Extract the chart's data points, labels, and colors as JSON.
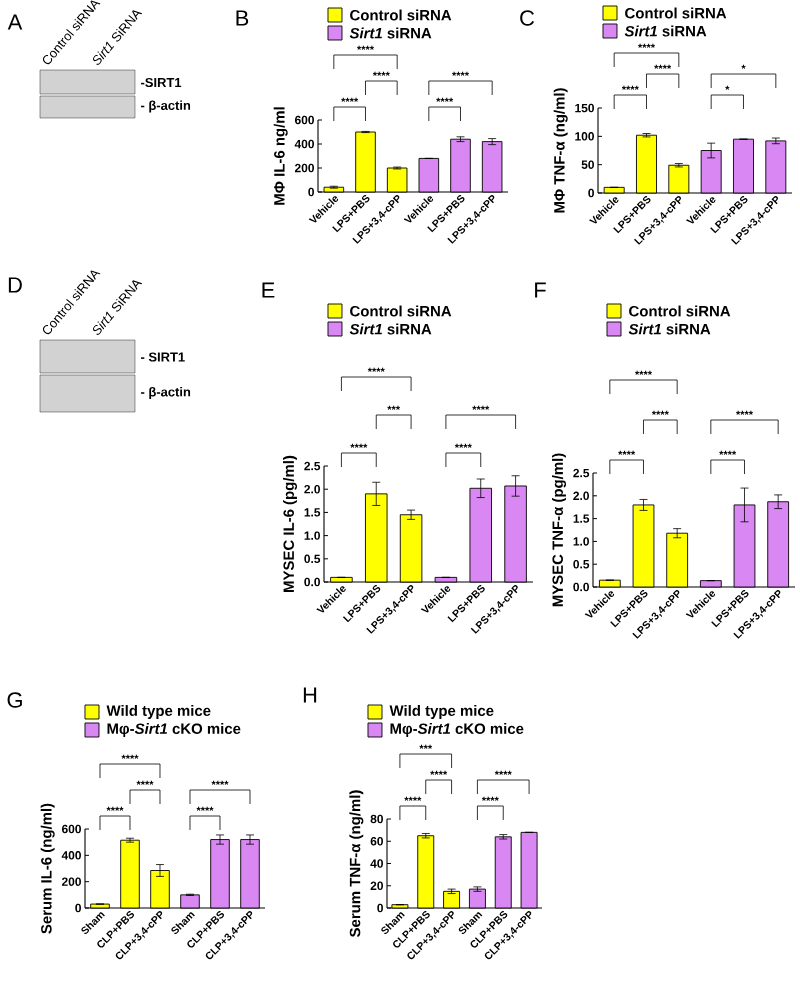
{
  "chart_data": [
    {
      "type": "other",
      "title": "A",
      "annotations": [
        "Control siRNA",
        "*Sirt1* SiRNA",
        "-SIRT1",
        "- β-actin"
      ]
    },
    {
      "type": "bar",
      "title": "B",
      "ylabel": "MΦ IL-6 ng/ml",
      "categories": [
        "Vehicle",
        "LPS+PBS",
        "LPS+3,4-cPP",
        "Vehicle",
        "LPS+PBS",
        "LPS+3,4-cPP"
      ],
      "series": [
        {
          "name": "Control siRNA",
          "color": "#ffff00",
          "values": [
            40,
            500,
            200,
            null,
            null,
            null
          ],
          "errors": [
            8,
            5,
            8,
            null,
            null,
            null
          ]
        },
        {
          "name": "*Sirt1* siRNA",
          "color": "#d987f2",
          "values": [
            null,
            null,
            null,
            280,
            440,
            420
          ],
          "errors": [
            null,
            null,
            null,
            null,
            20,
            25
          ]
        }
      ],
      "ylim": [
        0,
        600
      ],
      "yticks": [
        0,
        200,
        400,
        600
      ],
      "legend": "top",
      "annotations": [
        "****",
        "****",
        "****",
        "****",
        "****"
      ]
    },
    {
      "type": "bar",
      "title": "C",
      "ylabel": "MΦ TNF-α (ng/ml)",
      "categories": [
        "Vehicle",
        "LPS+PBS",
        "LPS+3,4-cPP",
        "Vehicle",
        "LPS+PBS",
        "LPS+3,4-cPP"
      ],
      "series": [
        {
          "name": "Control siRNA",
          "color": "#ffff00",
          "values": [
            10,
            102,
            49,
            null,
            null,
            null
          ],
          "errors": [
            null,
            3,
            3,
            null,
            null,
            null
          ]
        },
        {
          "name": "*Sirt1* siRNA",
          "color": "#d987f2",
          "values": [
            null,
            null,
            null,
            75,
            95,
            92
          ],
          "errors": [
            null,
            null,
            null,
            13,
            null,
            5
          ]
        }
      ],
      "ylim": [
        0,
        150
      ],
      "yticks": [
        0,
        50,
        100,
        150
      ],
      "legend": "top",
      "annotations": [
        "****",
        "****",
        "****",
        "*",
        "*"
      ]
    },
    {
      "type": "other",
      "title": "D",
      "annotations": [
        "Control siRNA",
        "*Sirt1* SiRNA",
        "- SIRT1",
        "- β-actin"
      ]
    },
    {
      "type": "bar",
      "title": "E",
      "ylabel": "MYSEC IL-6 (pg/ml)",
      "categories": [
        "Vehicle",
        "LPS+PBS",
        "LPS+3,4-cPP",
        "Vehicle",
        "LPS+PBS",
        "LPS+3,4-cPP"
      ],
      "series": [
        {
          "name": "Control siRNA",
          "color": "#ffff00",
          "values": [
            0.1,
            1.9,
            1.45,
            null,
            null,
            null
          ],
          "errors": [
            null,
            0.25,
            0.1,
            null,
            null,
            null
          ]
        },
        {
          "name": "*Sirt1* siRNA",
          "color": "#d987f2",
          "values": [
            null,
            null,
            null,
            0.1,
            2.02,
            2.07
          ],
          "errors": [
            null,
            null,
            null,
            null,
            0.2,
            0.22
          ]
        }
      ],
      "ylim": [
        0,
        2.5
      ],
      "yticks": [
        {
          "value": 0,
          "label": "0.0"
        },
        {
          "value": 0.5,
          "label": "0.5"
        },
        {
          "value": 1,
          "label": "1.0"
        },
        {
          "value": 1.5,
          "label": "1.5"
        },
        {
          "value": 2,
          "label": "2.0"
        },
        {
          "value": 2.5,
          "label": "2.5"
        }
      ],
      "legend": "top",
      "annotations": [
        "****",
        "***",
        "****",
        "****",
        "****"
      ]
    },
    {
      "type": "bar",
      "title": "F",
      "ylabel": "MYSEC TNF-α (pg/ml)",
      "categories": [
        "Vehicle",
        "LPS+PBS",
        "LPS+3,4-cPP",
        "Vehicle",
        "LPS+PBS",
        "LPS+3,4-cPP"
      ],
      "series": [
        {
          "name": "Control siRNA",
          "color": "#ffff00",
          "values": [
            0.15,
            1.8,
            1.18,
            null,
            null,
            null
          ],
          "errors": [
            null,
            0.12,
            0.1,
            null,
            null,
            null
          ]
        },
        {
          "name": "*Sirt1* siRNA",
          "color": "#d987f2",
          "values": [
            null,
            null,
            null,
            0.14,
            1.8,
            1.87
          ],
          "errors": [
            null,
            null,
            null,
            null,
            0.37,
            0.15
          ]
        }
      ],
      "ylim": [
        0,
        2.5
      ],
      "yticks": [
        {
          "value": 0,
          "label": "0.0"
        },
        {
          "value": 0.5,
          "label": "0.5"
        },
        {
          "value": 1,
          "label": "1.0"
        },
        {
          "value": 1.5,
          "label": "1.5"
        },
        {
          "value": 2,
          "label": "2.0"
        },
        {
          "value": 2.5,
          "label": "2.5"
        }
      ],
      "legend": "top",
      "annotations": [
        "****",
        "****",
        "****",
        "****",
        "****"
      ]
    },
    {
      "type": "bar",
      "title": "G",
      "ylabel": "Serum IL-6 (ng/ml)",
      "categories": [
        "Sham",
        "CLP+PBS",
        "CLP+3,4-cPP",
        "Sham",
        "CLP+PBS",
        "CLP+3,4-cPP"
      ],
      "series": [
        {
          "name": "Wild type mice",
          "color": "#ffff00",
          "values": [
            30,
            515,
            285,
            null,
            null,
            null
          ],
          "errors": [
            null,
            15,
            45,
            null,
            null,
            null
          ]
        },
        {
          "name": "Mφ-*Sirt1* cKO mice",
          "color": "#d987f2",
          "values": [
            null,
            null,
            null,
            100,
            520,
            520
          ],
          "errors": [
            null,
            null,
            null,
            5,
            35,
            35
          ]
        }
      ],
      "ylim": [
        0,
        600
      ],
      "yticks": [
        0,
        200,
        400,
        600
      ],
      "legend": "top",
      "annotations": [
        "****",
        "****",
        "****",
        "****",
        "****"
      ]
    },
    {
      "type": "bar",
      "title": "H",
      "ylabel": "Serum TNF-α (ng/ml)",
      "categories": [
        "Sham",
        "CLP+PBS",
        "CLP+3,4-cPP",
        "Sham",
        "CLP+PBS",
        "CLP+3,4-cPP"
      ],
      "series": [
        {
          "name": "Wild type mice",
          "color": "#ffff00",
          "values": [
            3,
            65,
            15,
            null,
            null,
            null
          ],
          "errors": [
            null,
            2,
            2,
            null,
            null,
            null
          ]
        },
        {
          "name": "Mφ-*Sirt1* cKO mice",
          "color": "#d987f2",
          "values": [
            null,
            null,
            null,
            17,
            64,
            68
          ],
          "errors": [
            null,
            null,
            null,
            2,
            2,
            null
          ]
        }
      ],
      "ylim": [
        0,
        80
      ],
      "yticks": [
        0,
        20,
        40,
        60,
        80
      ],
      "legend": "top",
      "annotations": [
        "****",
        "****",
        "***",
        "****",
        "****"
      ]
    }
  ]
}
